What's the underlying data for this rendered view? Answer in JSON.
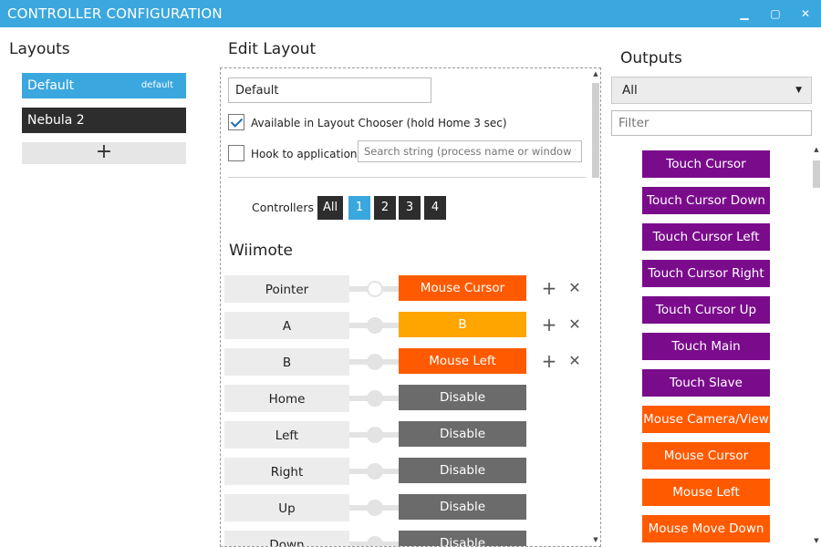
{
  "window": {
    "title": "CONTROLLER CONFIGURATION",
    "minimize": "▁",
    "maximize": "▢",
    "close": "✕"
  },
  "layouts": {
    "heading": "Layouts",
    "items": [
      {
        "label": "Default",
        "tag": "default"
      },
      {
        "label": "Nebula 2"
      }
    ],
    "add_label": "+"
  },
  "edit": {
    "heading": "Edit Layout",
    "name_value": "Default",
    "available_label": "Available in Layout Chooser (hold Home 3 sec)",
    "available_checked": true,
    "hook_label": "Hook to application",
    "hook_checked": false,
    "search_placeholder": "Search string (process name or window title,",
    "controllers_label": "Controllers",
    "controllers": [
      "All",
      "1",
      "2",
      "3",
      "4"
    ],
    "active_controller": "1",
    "section": "Wiimote",
    "mappings": [
      {
        "input": "Pointer",
        "output": "Mouse Cursor",
        "color": "#ff5a00",
        "actions": true
      },
      {
        "input": "A",
        "output": "B",
        "color": "#ffa500",
        "actions": true
      },
      {
        "input": "B",
        "output": "Mouse Left",
        "color": "#ff5a00",
        "actions": true
      },
      {
        "input": "Home",
        "output": "Disable",
        "color": "#6b6b6b",
        "actions": false
      },
      {
        "input": "Left",
        "output": "Disable",
        "color": "#6b6b6b",
        "actions": false
      },
      {
        "input": "Right",
        "output": "Disable",
        "color": "#6b6b6b",
        "actions": false
      },
      {
        "input": "Up",
        "output": "Disable",
        "color": "#6b6b6b",
        "actions": false
      },
      {
        "input": "Down",
        "output": "Disable",
        "color": "#6b6b6b",
        "actions": false
      }
    ],
    "add_icon": "+",
    "remove_icon": "✕"
  },
  "outputs": {
    "heading": "Outputs",
    "filter_selected": "All",
    "filter_placeholder": "Filter",
    "items": [
      {
        "label": "Touch Cursor",
        "color": "#7a0c8c"
      },
      {
        "label": "Touch Cursor Down",
        "color": "#7a0c8c"
      },
      {
        "label": "Touch Cursor Left",
        "color": "#7a0c8c"
      },
      {
        "label": "Touch Cursor Right",
        "color": "#7a0c8c"
      },
      {
        "label": "Touch Cursor Up",
        "color": "#7a0c8c"
      },
      {
        "label": "Touch Main",
        "color": "#7a0c8c"
      },
      {
        "label": "Touch Slave",
        "color": "#7a0c8c"
      },
      {
        "label": "Mouse Camera/View",
        "color": "#ff5a00"
      },
      {
        "label": "Mouse Cursor",
        "color": "#ff5a00"
      },
      {
        "label": "Mouse Left",
        "color": "#ff5a00"
      },
      {
        "label": "Mouse Move Down",
        "color": "#ff5a00"
      }
    ]
  },
  "icons": {
    "scroll_up": "▲",
    "scroll_down": "▼",
    "dropdown": "▼"
  }
}
